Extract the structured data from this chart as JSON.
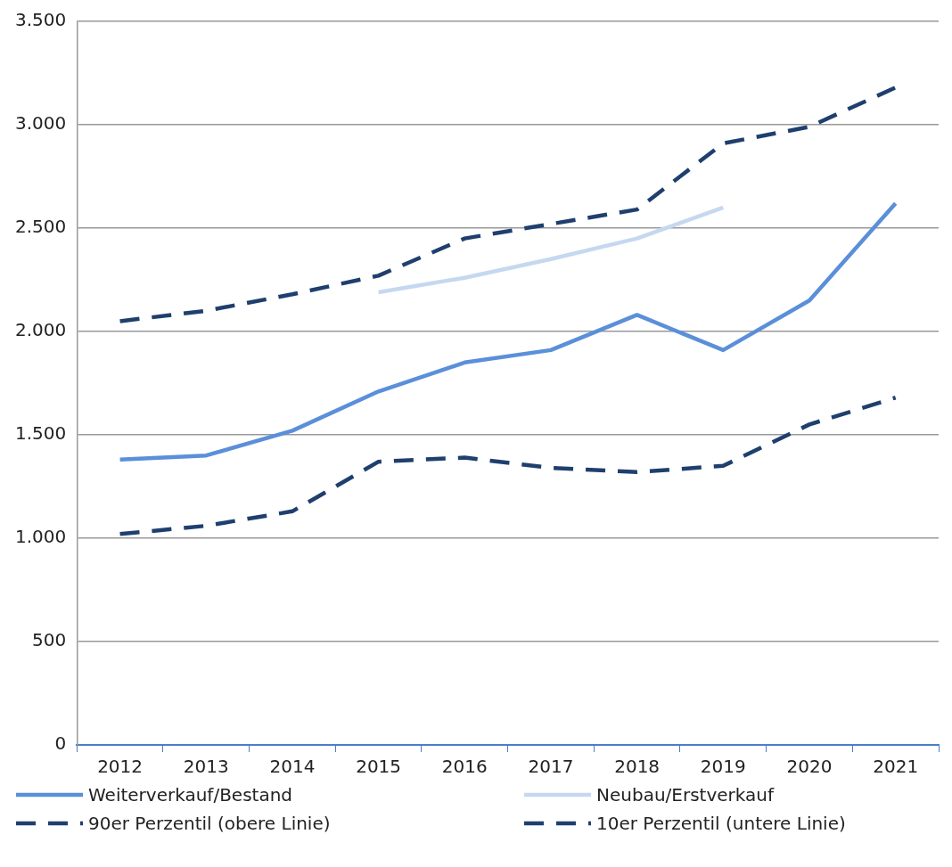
{
  "chart_data": {
    "type": "line",
    "categories": [
      "2012",
      "2013",
      "2014",
      "2015",
      "2016",
      "2017",
      "2018",
      "2019",
      "2020",
      "2021"
    ],
    "series": [
      {
        "name": "Weiterverkauf/Bestand",
        "color": "#5b8fd9",
        "line_style": "solid",
        "values": [
          1380,
          1400,
          1520,
          1710,
          1850,
          1910,
          2080,
          1910,
          2150,
          2620
        ]
      },
      {
        "name": "Neubau/Erstverkauf",
        "color": "#c6d8f0",
        "line_style": "solid",
        "values": [
          null,
          null,
          null,
          2190,
          2260,
          2350,
          2450,
          2600,
          null,
          null
        ]
      },
      {
        "name": "90er Perzentil (obere Linie)",
        "color": "#1f3f6e",
        "line_style": "dashed",
        "values": [
          2050,
          2100,
          2180,
          2270,
          2450,
          2520,
          2590,
          2910,
          2990,
          3180
        ]
      },
      {
        "name": "10er Perzentil (untere Linie)",
        "color": "#1f3f6e",
        "line_style": "dashed",
        "values": [
          1020,
          1060,
          1130,
          1370,
          1390,
          1340,
          1320,
          1350,
          1550,
          1680
        ]
      }
    ],
    "ylim": [
      0,
      3500
    ],
    "yticks": [
      {
        "value": 0,
        "label": "0"
      },
      {
        "value": 500,
        "label": "500"
      },
      {
        "value": 1000,
        "label": "1.000"
      },
      {
        "value": 1500,
        "label": "1.500"
      },
      {
        "value": 2000,
        "label": "2.000"
      },
      {
        "value": 2500,
        "label": "2.500"
      },
      {
        "value": 3000,
        "label": "3.000"
      },
      {
        "value": 3500,
        "label": "3.500"
      }
    ],
    "grid": "y",
    "legend": "bottom",
    "marker": "none"
  }
}
